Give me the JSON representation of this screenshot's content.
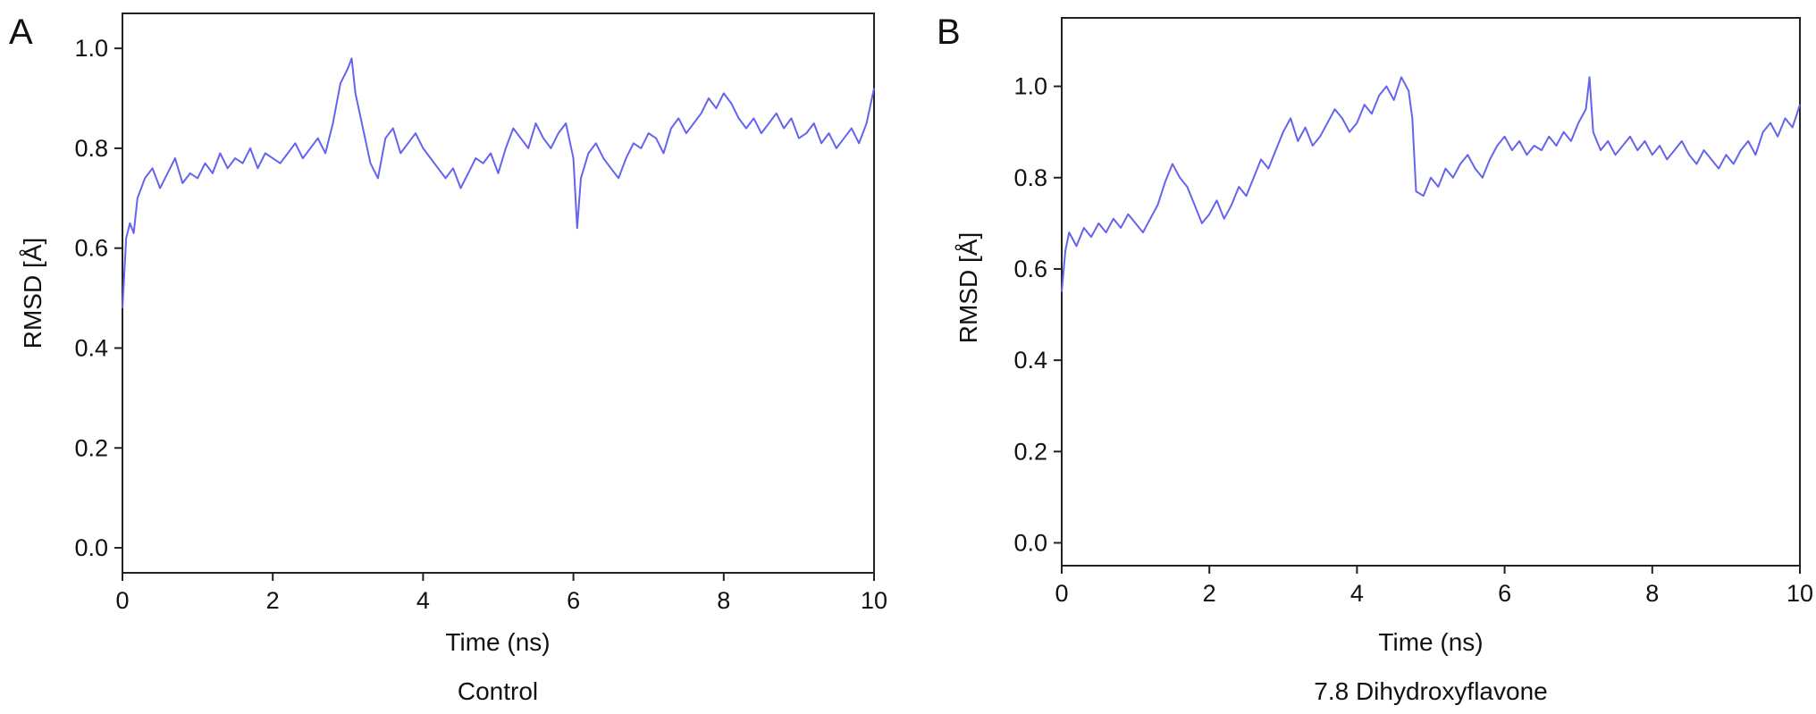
{
  "chart_data": [
    {
      "type": "line",
      "panel_label": "A",
      "caption": "Control",
      "xlabel": "Time (ns)",
      "ylabel": "RMSD [Å]",
      "xlim": [
        0,
        10
      ],
      "ylim": [
        -0.05,
        1.07
      ],
      "x_ticks": [
        "0",
        "2",
        "4",
        "6",
        "8",
        "10"
      ],
      "y_ticks": [
        "0.0",
        "0.2",
        "0.4",
        "0.6",
        "0.8",
        "1.0"
      ],
      "grid": false,
      "line_color": "#6464ee",
      "series": [
        {
          "x": [
            0,
            0.05,
            0.1,
            0.15,
            0.2,
            0.3,
            0.4,
            0.5,
            0.6,
            0.7,
            0.8,
            0.9,
            1.0,
            1.1,
            1.2,
            1.3,
            1.4,
            1.5,
            1.6,
            1.7,
            1.8,
            1.9,
            2.0,
            2.1,
            2.2,
            2.3,
            2.4,
            2.5,
            2.6,
            2.7,
            2.8,
            2.9,
            3.0,
            3.05,
            3.1,
            3.2,
            3.3,
            3.4,
            3.5,
            3.6,
            3.7,
            3.8,
            3.9,
            4.0,
            4.1,
            4.2,
            4.3,
            4.4,
            4.5,
            4.6,
            4.7,
            4.8,
            4.9,
            5.0,
            5.1,
            5.2,
            5.3,
            5.4,
            5.5,
            5.6,
            5.7,
            5.8,
            5.9,
            6.0,
            6.05,
            6.1,
            6.2,
            6.3,
            6.4,
            6.5,
            6.6,
            6.7,
            6.8,
            6.9,
            7.0,
            7.1,
            7.2,
            7.3,
            7.4,
            7.5,
            7.6,
            7.7,
            7.8,
            7.9,
            8.0,
            8.1,
            8.2,
            8.3,
            8.4,
            8.5,
            8.6,
            8.7,
            8.8,
            8.9,
            9.0,
            9.1,
            9.2,
            9.3,
            9.4,
            9.5,
            9.6,
            9.7,
            9.8,
            9.9,
            10.0
          ],
          "values": [
            0.48,
            0.62,
            0.65,
            0.63,
            0.7,
            0.74,
            0.76,
            0.72,
            0.75,
            0.78,
            0.73,
            0.75,
            0.74,
            0.77,
            0.75,
            0.79,
            0.76,
            0.78,
            0.77,
            0.8,
            0.76,
            0.79,
            0.78,
            0.77,
            0.79,
            0.81,
            0.78,
            0.8,
            0.82,
            0.79,
            0.85,
            0.93,
            0.96,
            0.98,
            0.91,
            0.84,
            0.77,
            0.74,
            0.82,
            0.84,
            0.79,
            0.81,
            0.83,
            0.8,
            0.78,
            0.76,
            0.74,
            0.76,
            0.72,
            0.75,
            0.78,
            0.77,
            0.79,
            0.75,
            0.8,
            0.84,
            0.82,
            0.8,
            0.85,
            0.82,
            0.8,
            0.83,
            0.85,
            0.78,
            0.64,
            0.74,
            0.79,
            0.81,
            0.78,
            0.76,
            0.74,
            0.78,
            0.81,
            0.8,
            0.83,
            0.82,
            0.79,
            0.84,
            0.86,
            0.83,
            0.85,
            0.87,
            0.9,
            0.88,
            0.91,
            0.89,
            0.86,
            0.84,
            0.86,
            0.83,
            0.85,
            0.87,
            0.84,
            0.86,
            0.82,
            0.83,
            0.85,
            0.81,
            0.83,
            0.8,
            0.82,
            0.84,
            0.81,
            0.85,
            0.92
          ]
        }
      ]
    },
    {
      "type": "line",
      "panel_label": "B",
      "caption": "7.8 Dihydroxyflavone",
      "xlabel": "Time (ns)",
      "ylabel": "RMSD [Å]",
      "xlim": [
        0,
        10
      ],
      "ylim": [
        -0.05,
        1.15
      ],
      "x_ticks": [
        "0",
        "2",
        "4",
        "6",
        "8",
        "10"
      ],
      "y_ticks": [
        "0.0",
        "0.2",
        "0.4",
        "0.6",
        "0.8",
        "1.0"
      ],
      "grid": false,
      "line_color": "#6464ee",
      "series": [
        {
          "x": [
            0,
            0.05,
            0.1,
            0.2,
            0.3,
            0.4,
            0.5,
            0.6,
            0.7,
            0.8,
            0.9,
            1.0,
            1.1,
            1.2,
            1.3,
            1.4,
            1.5,
            1.6,
            1.7,
            1.8,
            1.9,
            2.0,
            2.1,
            2.2,
            2.3,
            2.4,
            2.5,
            2.6,
            2.7,
            2.8,
            2.9,
            3.0,
            3.1,
            3.2,
            3.3,
            3.4,
            3.5,
            3.6,
            3.7,
            3.8,
            3.9,
            4.0,
            4.1,
            4.2,
            4.3,
            4.4,
            4.5,
            4.6,
            4.7,
            4.75,
            4.8,
            4.9,
            5.0,
            5.1,
            5.2,
            5.3,
            5.4,
            5.5,
            5.6,
            5.7,
            5.8,
            5.9,
            6.0,
            6.1,
            6.2,
            6.3,
            6.4,
            6.5,
            6.6,
            6.7,
            6.8,
            6.9,
            7.0,
            7.1,
            7.15,
            7.2,
            7.3,
            7.4,
            7.5,
            7.6,
            7.7,
            7.8,
            7.9,
            8.0,
            8.1,
            8.2,
            8.3,
            8.4,
            8.5,
            8.6,
            8.7,
            8.8,
            8.9,
            9.0,
            9.1,
            9.2,
            9.3,
            9.4,
            9.5,
            9.6,
            9.7,
            9.8,
            9.9,
            10.0
          ],
          "values": [
            0.55,
            0.64,
            0.68,
            0.65,
            0.69,
            0.67,
            0.7,
            0.68,
            0.71,
            0.69,
            0.72,
            0.7,
            0.68,
            0.71,
            0.74,
            0.79,
            0.83,
            0.8,
            0.78,
            0.74,
            0.7,
            0.72,
            0.75,
            0.71,
            0.74,
            0.78,
            0.76,
            0.8,
            0.84,
            0.82,
            0.86,
            0.9,
            0.93,
            0.88,
            0.91,
            0.87,
            0.89,
            0.92,
            0.95,
            0.93,
            0.9,
            0.92,
            0.96,
            0.94,
            0.98,
            1.0,
            0.97,
            1.02,
            0.99,
            0.93,
            0.77,
            0.76,
            0.8,
            0.78,
            0.82,
            0.8,
            0.83,
            0.85,
            0.82,
            0.8,
            0.84,
            0.87,
            0.89,
            0.86,
            0.88,
            0.85,
            0.87,
            0.86,
            0.89,
            0.87,
            0.9,
            0.88,
            0.92,
            0.95,
            1.02,
            0.9,
            0.86,
            0.88,
            0.85,
            0.87,
            0.89,
            0.86,
            0.88,
            0.85,
            0.87,
            0.84,
            0.86,
            0.88,
            0.85,
            0.83,
            0.86,
            0.84,
            0.82,
            0.85,
            0.83,
            0.86,
            0.88,
            0.85,
            0.9,
            0.92,
            0.89,
            0.93,
            0.91,
            0.96
          ]
        }
      ]
    }
  ]
}
